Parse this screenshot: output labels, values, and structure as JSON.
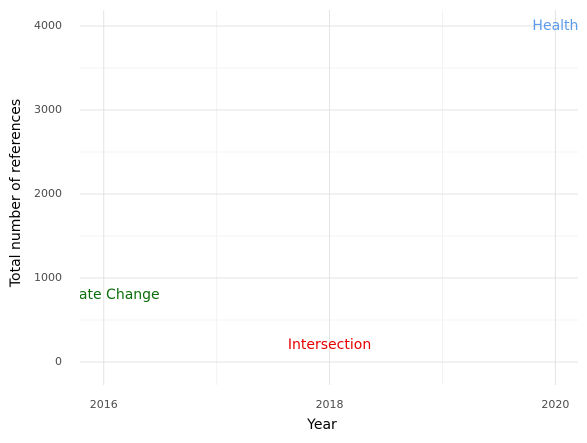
{
  "chart_data": {
    "type": "text",
    "xlabel": "Year",
    "ylabel": "Total number of references",
    "xlim": [
      2015.79,
      2020.2
    ],
    "xticks": [
      2016,
      2018,
      2020
    ],
    "xminor": [
      2017,
      2019
    ],
    "ylim": [
      -274,
      4190
    ],
    "yticks": [
      0,
      1000,
      2000,
      3000,
      4000
    ],
    "yminor": [
      500,
      1500,
      2500,
      3500
    ],
    "grid": true,
    "annotations": [
      {
        "label": "Health",
        "x": 2020,
        "y": 4000,
        "color": "#5b9bea"
      },
      {
        "label": "Climate Change",
        "x": 2016,
        "y": 800,
        "color": "#0a6e0a"
      },
      {
        "label": "Intersection",
        "x": 2018,
        "y": 200,
        "color": "#e60000"
      }
    ]
  }
}
